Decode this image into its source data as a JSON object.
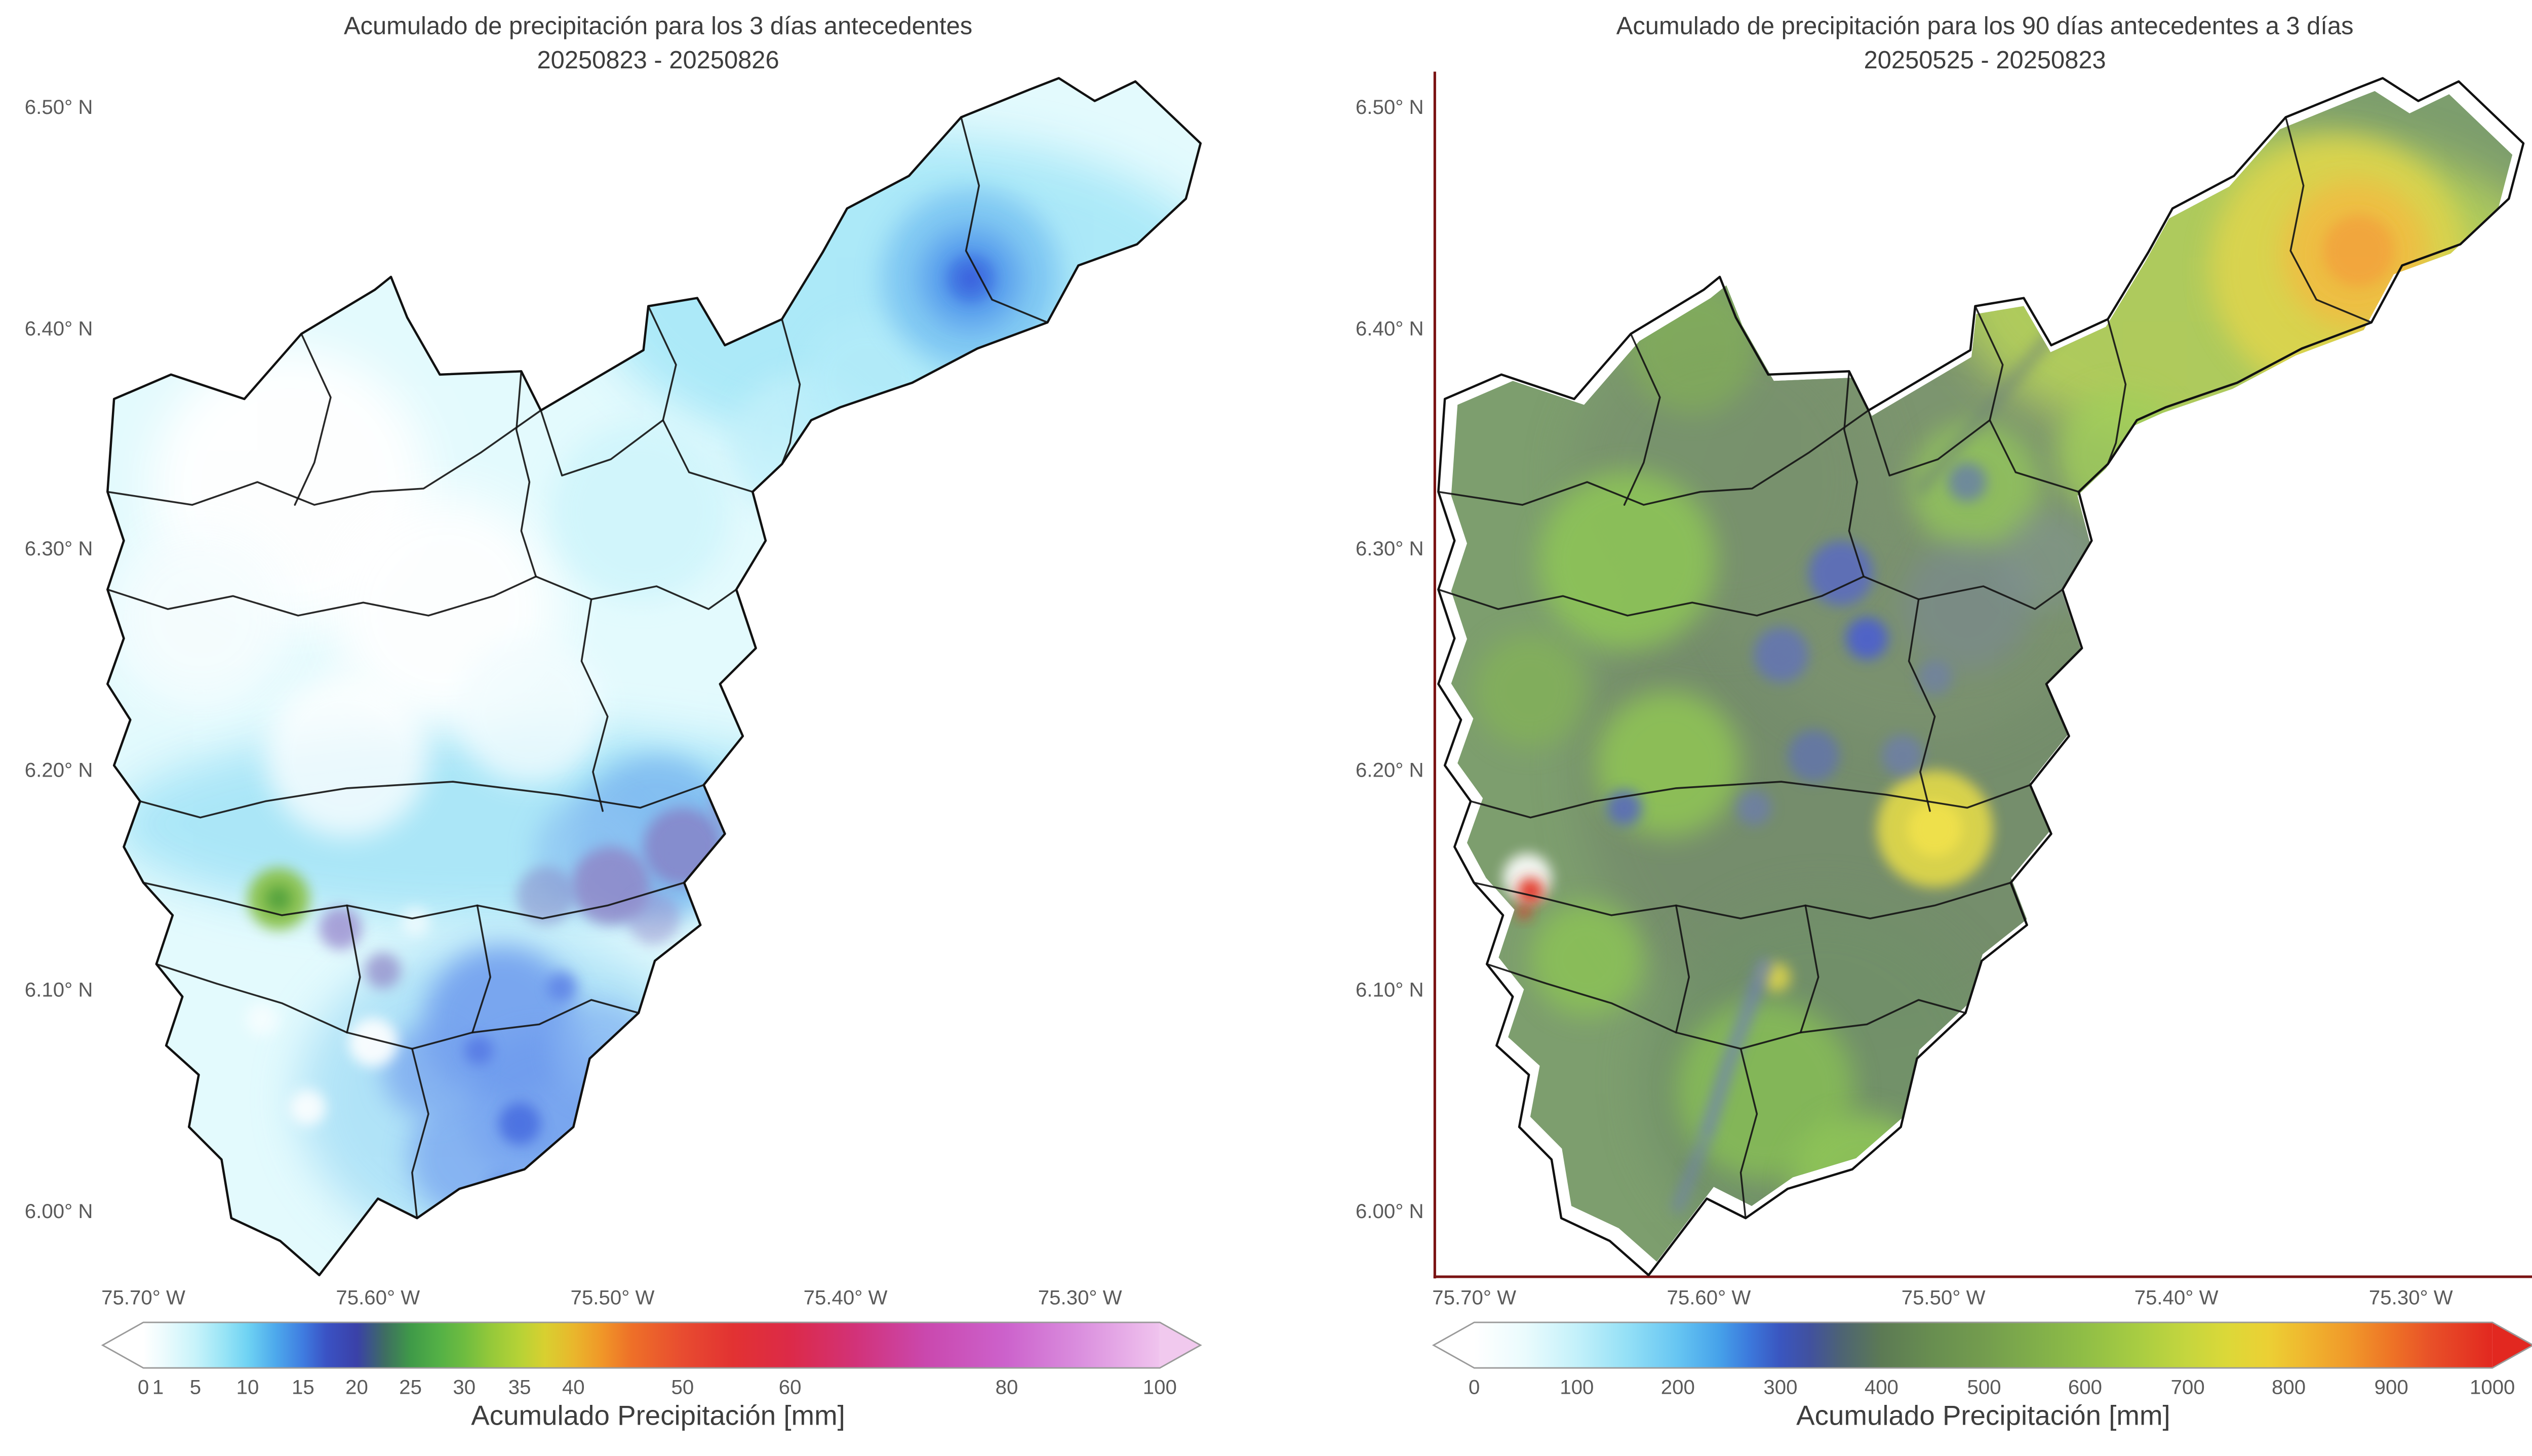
{
  "panels": [
    {
      "title_line1": "Acumulado de precipitación para los 3 días antecedentes",
      "title_line2": "20250823 - 20250826",
      "y_ticks": [
        "6.50° N",
        "6.40° N",
        "6.30° N",
        "6.20° N",
        "6.10° N",
        "6.00° N"
      ],
      "x_ticks": [
        "75.70° W",
        "75.60° W",
        "75.50° W",
        "75.40° W",
        "75.30° W"
      ],
      "colorbar": {
        "label": "Acumulado Precipitación [mm]",
        "ticks": [
          "0",
          "1",
          "5",
          "10",
          "15",
          "20",
          "25",
          "30",
          "35",
          "40",
          "50",
          "60",
          "80",
          "100"
        ],
        "arrow_left": "#ffffff",
        "arrow_right": "#f1c9ee",
        "stops": [
          [
            0,
            "#ffffff"
          ],
          [
            2,
            "#ecfbfd"
          ],
          [
            5.1,
            "#c8f3fa"
          ],
          [
            8,
            "#97e4f6"
          ],
          [
            10.3,
            "#6ed2f3"
          ],
          [
            13,
            "#4da9ec"
          ],
          [
            15.7,
            "#3f7ce0"
          ],
          [
            18,
            "#3a52c4"
          ],
          [
            21,
            "#3a41a8"
          ],
          [
            23.8,
            "#3e6e61"
          ],
          [
            26.3,
            "#3f9a48"
          ],
          [
            29,
            "#53b046"
          ],
          [
            31.6,
            "#6ebc40"
          ],
          [
            34,
            "#92c83a"
          ],
          [
            37,
            "#b6d236"
          ],
          [
            39.5,
            "#d8d030"
          ],
          [
            42.3,
            "#e9b72c"
          ],
          [
            45,
            "#f09828"
          ],
          [
            48,
            "#ee7028"
          ],
          [
            53,
            "#e84c30"
          ],
          [
            58,
            "#e23232"
          ],
          [
            63.6,
            "#dc2a48"
          ],
          [
            70,
            "#d23278"
          ],
          [
            77,
            "#ca48ae"
          ],
          [
            84.9,
            "#cc62cc"
          ],
          [
            92,
            "#da8ede"
          ],
          [
            100,
            "#f0c4ee"
          ]
        ]
      }
    },
    {
      "title_line1": "Acumulado de precipitación para los 90 días antecedentes a 3 días",
      "title_line2": "20250525 - 20250823",
      "y_ticks": [
        "6.50° N",
        "6.40° N",
        "6.30° N",
        "6.20° N",
        "6.10° N",
        "6.00° N"
      ],
      "x_ticks": [
        "75.70° W",
        "75.60° W",
        "75.50° W",
        "75.40° W",
        "75.30° W"
      ],
      "colorbar": {
        "label": "Acumulado Precipitación [mm]",
        "ticks": [
          "0",
          "100",
          "200",
          "300",
          "400",
          "500",
          "600",
          "700",
          "800",
          "900",
          "1000"
        ],
        "arrow_left": "#ffffff",
        "arrow_right": "#e22820",
        "stops": [
          [
            0,
            "#ffffff"
          ],
          [
            5,
            "#eafbfd"
          ],
          [
            10,
            "#c4f1fa"
          ],
          [
            15,
            "#94e0f6"
          ],
          [
            20,
            "#66c5f2"
          ],
          [
            24,
            "#46a2ea"
          ],
          [
            27,
            "#3c79dc"
          ],
          [
            30,
            "#3a56c0"
          ],
          [
            33,
            "#41519e"
          ],
          [
            36,
            "#4d6374"
          ],
          [
            40,
            "#5c7a54"
          ],
          [
            45,
            "#688e50"
          ],
          [
            50,
            "#739c4e"
          ],
          [
            55,
            "#80ae4a"
          ],
          [
            60,
            "#90be46"
          ],
          [
            65,
            "#a7cc42"
          ],
          [
            70,
            "#c5d63e"
          ],
          [
            74,
            "#dcd838"
          ],
          [
            78,
            "#ecd034"
          ],
          [
            82,
            "#f0b42e"
          ],
          [
            86,
            "#f0982a"
          ],
          [
            90,
            "#ee7426"
          ],
          [
            94,
            "#e85028"
          ],
          [
            100,
            "#e22820"
          ]
        ]
      }
    }
  ],
  "chart_data": [
    {
      "type": "heatmap",
      "subtype": "geographic filled-contour precipitation accumulation map over a river basin with municipal boundaries",
      "title": "Acumulado de precipitación para los 3 días antecedentes",
      "subtitle": "20250823 - 20250826",
      "lon_ticks_deg_w": [
        75.7,
        75.6,
        75.5,
        75.4,
        75.3
      ],
      "lat_ticks_deg_n": [
        6.5,
        6.4,
        6.3,
        6.2,
        6.1,
        6.0
      ],
      "lon_range_deg_w": [
        75.72,
        75.24
      ],
      "lat_range_deg_n": [
        5.97,
        6.52
      ],
      "colorbar_label": "Acumulado Precipitación [mm]",
      "colorbar_ticks_mm": [
        0,
        1,
        5,
        10,
        15,
        20,
        25,
        30,
        35,
        40,
        50,
        60,
        80,
        100
      ],
      "colorbar_range_mm": [
        0,
        100
      ],
      "observations": [
        "northwest and central basin near 0-5 mm (white to pale cyan)",
        "band of 10-25 mm across the valley near 6.15-6.20 N with slate-violet patches of 20-25 mm",
        "blue maxima of 15-25 mm in the south-central basin around 6.05-6.12 N",
        "local green maximum ~25-30 mm near 75.645 W, 6.145 N",
        "northeast arm 5-15 mm with a ~20 mm blue core near 75.335 W, 6.425 N"
      ]
    },
    {
      "type": "heatmap",
      "subtype": "geographic filled-contour precipitation accumulation map over a river basin with municipal boundaries",
      "title": "Acumulado de precipitación para los 90 días antecedentes a 3 días",
      "subtitle": "20250525 - 20250823",
      "lon_ticks_deg_w": [
        75.7,
        75.6,
        75.5,
        75.4,
        75.3
      ],
      "lat_ticks_deg_n": [
        6.5,
        6.4,
        6.3,
        6.2,
        6.1,
        6.0
      ],
      "lon_range_deg_w": [
        75.72,
        75.24
      ],
      "lat_range_deg_n": [
        5.97,
        6.52
      ],
      "colorbar_label": "Acumulado Precipitación [mm]",
      "colorbar_ticks_mm": [
        0,
        100,
        200,
        300,
        400,
        500,
        600,
        700,
        800,
        900,
        1000
      ],
      "colorbar_range_mm": [
        0,
        1000
      ],
      "observations": [
        "most of the basin 400-600 mm (olive and green tones)",
        "brighter green patches 500-650 mm along the west and south",
        "blue-violet spots of 250-350 mm scattered through the center-east",
        "yellow-orange maximum ~750-850 mm in the northeast arm near 75.33 W, 6.43 N",
        "yellow patch ~700 mm near 75.47 W, 6.16 N",
        "small red spot >950 mm at the western edge near 75.66 W, 6.15 N",
        "thin white no-data margin between the data field and the basin outline"
      ]
    }
  ]
}
